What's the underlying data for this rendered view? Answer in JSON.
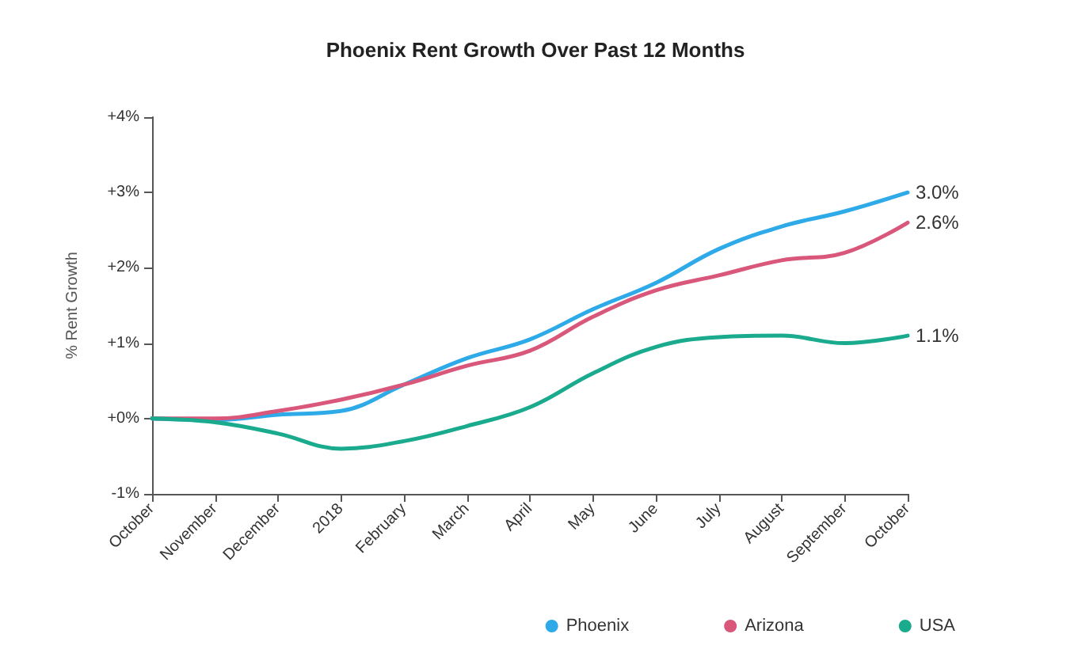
{
  "chart_data": {
    "type": "line",
    "title": "Phoenix Rent Growth Over Past 12 Months",
    "ylabel": "% Rent Growth",
    "categories": [
      "October",
      "November",
      "December",
      "2018",
      "February",
      "March",
      "April",
      "May",
      "June",
      "July",
      "August",
      "September",
      "October"
    ],
    "series": [
      {
        "name": "Phoenix",
        "color": "#2eaae8",
        "values": [
          0,
          -0.02,
          0.05,
          0.1,
          0.45,
          0.8,
          1.05,
          1.45,
          1.8,
          2.25,
          2.55,
          2.75,
          3.0
        ],
        "value_labels": [
          null,
          null,
          null,
          null,
          null,
          null,
          null,
          null,
          null,
          null,
          null,
          null,
          "3.0%"
        ]
      },
      {
        "name": "Arizona",
        "color": "#d9577a",
        "values": [
          0,
          0,
          0.1,
          0.25,
          0.45,
          0.7,
          0.9,
          1.35,
          1.7,
          1.9,
          2.1,
          2.2,
          2.6
        ],
        "value_labels": [
          null,
          null,
          null,
          null,
          null,
          null,
          null,
          null,
          null,
          null,
          null,
          null,
          "2.6%"
        ]
      },
      {
        "name": "USA",
        "color": "#1aaa8e",
        "values": [
          0,
          -0.05,
          -0.2,
          -0.4,
          -0.3,
          -0.1,
          0.15,
          0.6,
          0.95,
          1.08,
          1.1,
          1.0,
          1.1
        ],
        "value_labels": [
          null,
          null,
          null,
          null,
          null,
          null,
          null,
          null,
          null,
          null,
          null,
          null,
          "1.1%"
        ]
      }
    ],
    "ylim": [
      -1,
      4
    ],
    "yticks": [
      {
        "value": -1,
        "label": "-1%"
      },
      {
        "value": 0,
        "label": "+0%"
      },
      {
        "value": 1,
        "label": "+1%"
      },
      {
        "value": 2,
        "label": "+2%"
      },
      {
        "value": 3,
        "label": "+3%"
      },
      {
        "value": 4,
        "label": "+4%"
      }
    ],
    "grid": false,
    "legend": "bottom right",
    "marker": "none",
    "line_style": "solid"
  }
}
